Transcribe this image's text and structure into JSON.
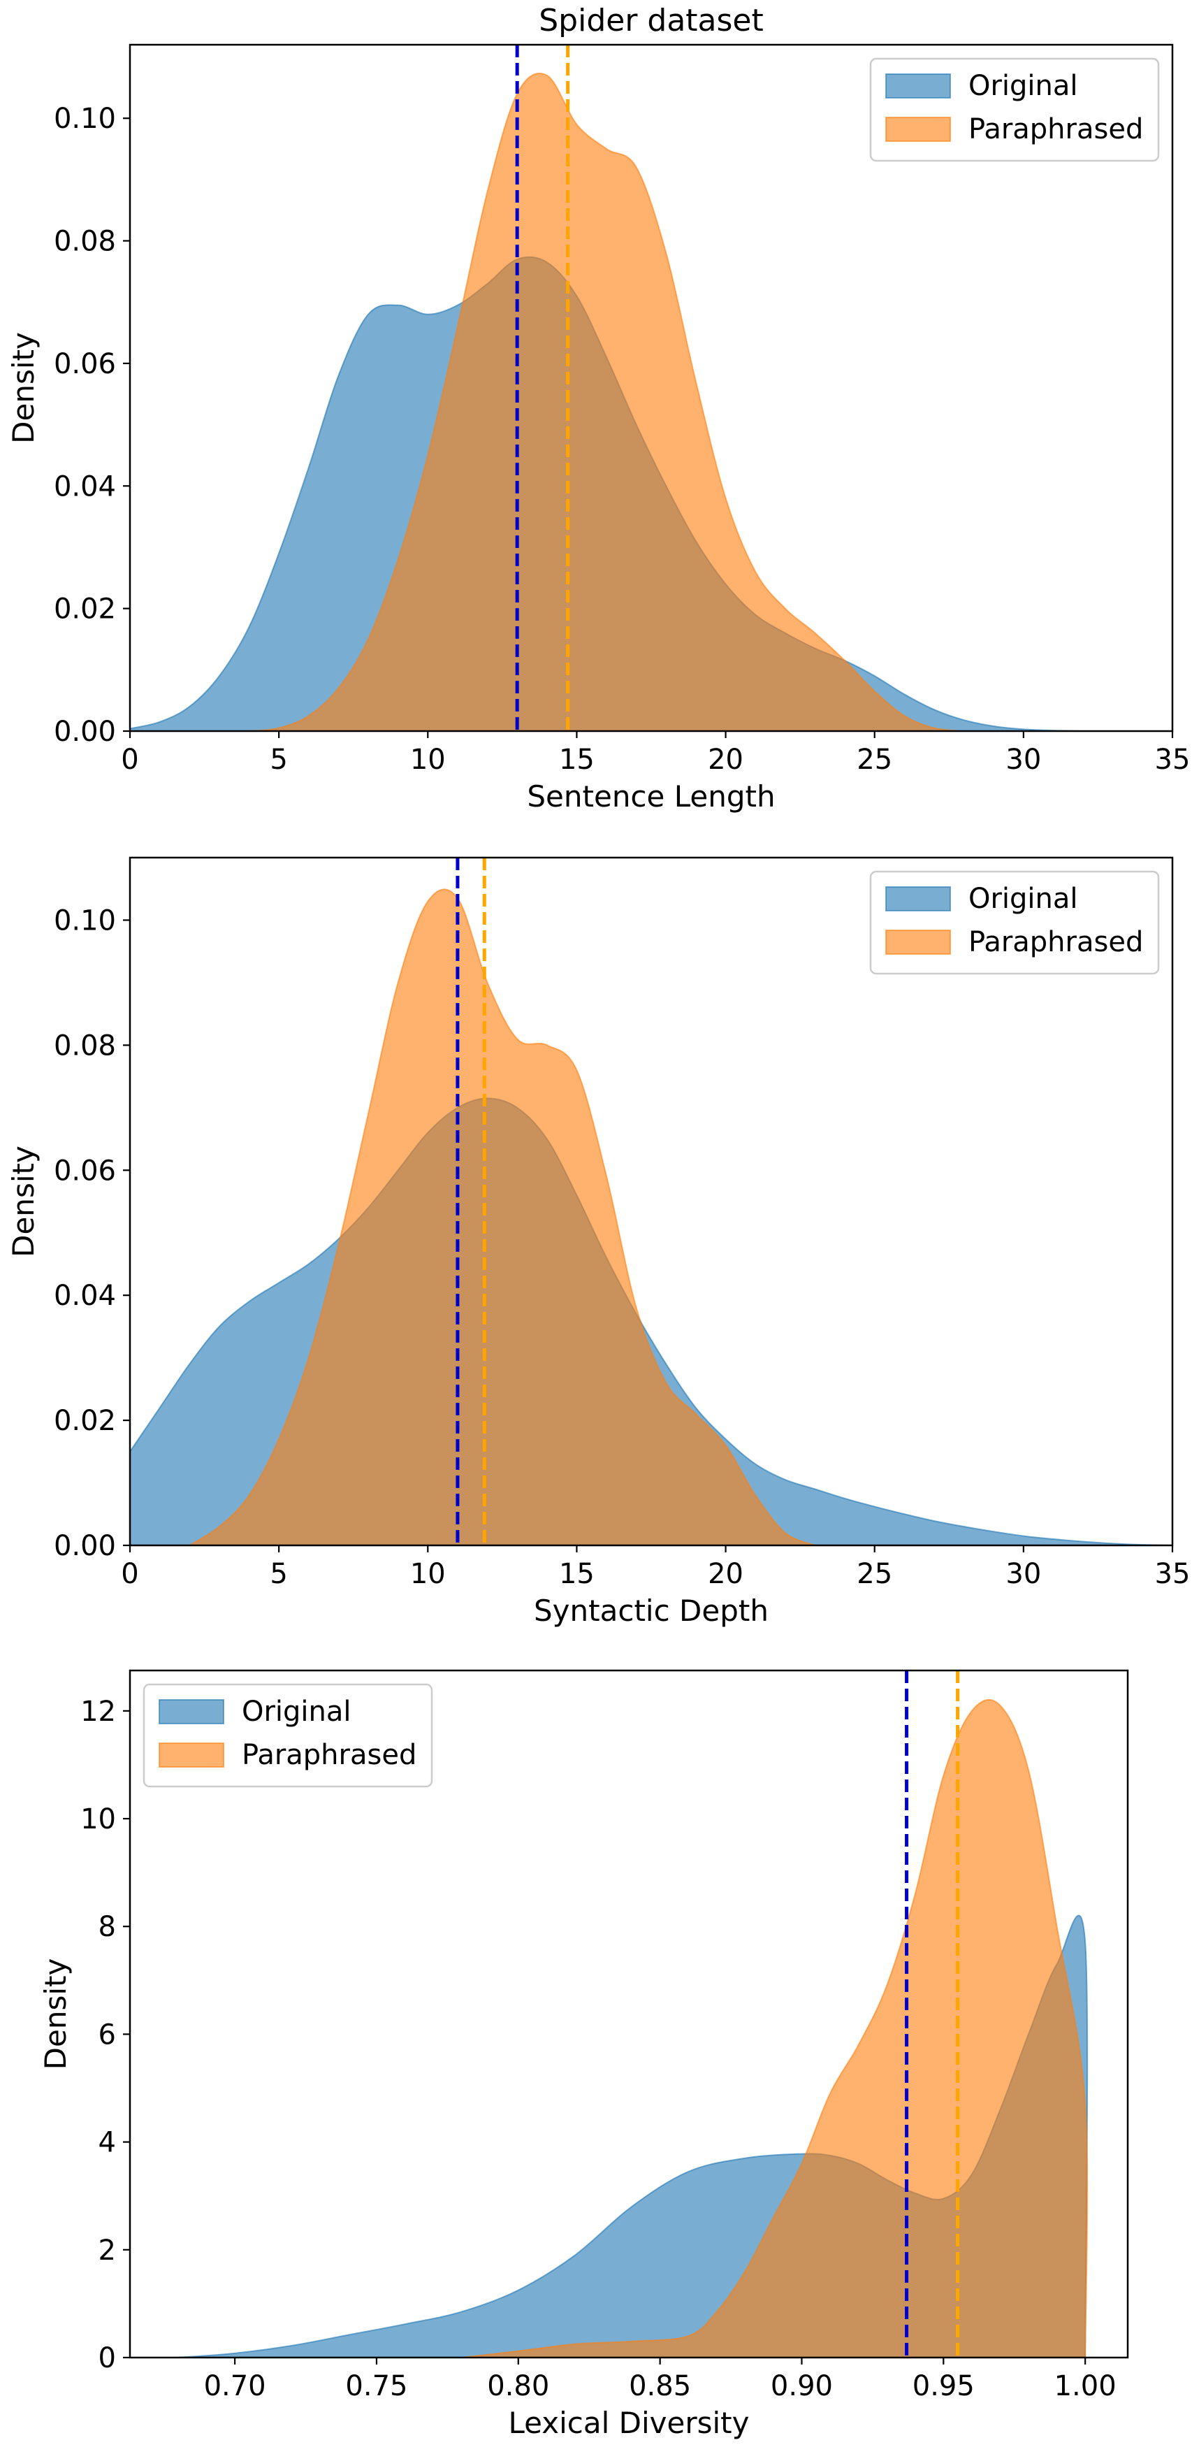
{
  "chart_data": [
    {
      "type": "area",
      "title": "Spider dataset",
      "xlabel": "Sentence Length",
      "ylabel": "Density",
      "xlim": [
        0,
        35
      ],
      "ylim": [
        0,
        0.112
      ],
      "xticks": [
        0,
        5,
        10,
        15,
        20,
        25,
        30,
        35
      ],
      "xtick_labels": [
        "0",
        "5",
        "10",
        "15",
        "20",
        "25",
        "30",
        "35"
      ],
      "yticks": [
        0,
        0.02,
        0.04,
        0.06,
        0.08,
        0.1
      ],
      "ytick_labels": [
        "0.00",
        "0.02",
        "0.04",
        "0.06",
        "0.08",
        "0.10"
      ],
      "legend_position": "upper right",
      "legend": [
        "Original",
        "Paraphrased"
      ],
      "series": [
        {
          "name": "Original",
          "color": "#1f77b4",
          "mean_line": 13.0,
          "mean_color": "#0000cd",
          "x": [
            0,
            1,
            2,
            3,
            4,
            5,
            6,
            7,
            8,
            9,
            10,
            11,
            12,
            13,
            14,
            15,
            16,
            17,
            18,
            19,
            20,
            21,
            22,
            23,
            24,
            25,
            26,
            27,
            28,
            29,
            30,
            31,
            32
          ],
          "y": [
            0.0004,
            0.0015,
            0.004,
            0.009,
            0.017,
            0.029,
            0.043,
            0.058,
            0.068,
            0.0695,
            0.068,
            0.0695,
            0.073,
            0.077,
            0.0765,
            0.071,
            0.061,
            0.05,
            0.04,
            0.031,
            0.024,
            0.019,
            0.016,
            0.0135,
            0.0115,
            0.009,
            0.006,
            0.0035,
            0.0018,
            0.0008,
            0.0003,
            0.0001,
            0.0
          ]
        },
        {
          "name": "Paraphrased",
          "color": "#ff7f0e",
          "mean_line": 14.7,
          "mean_color": "#ffa500",
          "x": [
            4,
            5,
            6,
            7,
            8,
            9,
            10,
            11,
            12,
            13,
            14,
            15,
            16,
            17,
            18,
            19,
            20,
            21,
            22,
            23,
            24,
            25,
            26,
            27,
            28
          ],
          "y": [
            0.0,
            0.0005,
            0.0025,
            0.007,
            0.015,
            0.028,
            0.045,
            0.066,
            0.088,
            0.104,
            0.107,
            0.099,
            0.095,
            0.092,
            0.078,
            0.057,
            0.038,
            0.026,
            0.02,
            0.016,
            0.0115,
            0.0065,
            0.0025,
            0.0005,
            0.0
          ]
        }
      ]
    },
    {
      "type": "area",
      "title": "",
      "xlabel": "Syntactic Depth",
      "ylabel": "Density",
      "xlim": [
        0,
        35
      ],
      "ylim": [
        0,
        0.11
      ],
      "xticks": [
        0,
        5,
        10,
        15,
        20,
        25,
        30,
        35
      ],
      "xtick_labels": [
        "0",
        "5",
        "10",
        "15",
        "20",
        "25",
        "30",
        "35"
      ],
      "yticks": [
        0,
        0.02,
        0.04,
        0.06,
        0.08,
        0.1
      ],
      "ytick_labels": [
        "0.00",
        "0.02",
        "0.04",
        "0.06",
        "0.08",
        "0.10"
      ],
      "legend_position": "upper right",
      "legend": [
        "Original",
        "Paraphrased"
      ],
      "series": [
        {
          "name": "Original",
          "color": "#1f77b4",
          "mean_line": 11.0,
          "mean_color": "#0000cd",
          "x": [
            0,
            1,
            2,
            3,
            4,
            5,
            6,
            7,
            8,
            9,
            10,
            11,
            12,
            13,
            14,
            15,
            16,
            17,
            18,
            19,
            20,
            21,
            22,
            23,
            24,
            25,
            26,
            27,
            28,
            29,
            30,
            31,
            32,
            33,
            34,
            35
          ],
          "y": [
            0.015,
            0.022,
            0.029,
            0.035,
            0.039,
            0.042,
            0.045,
            0.049,
            0.054,
            0.06,
            0.066,
            0.07,
            0.0715,
            0.07,
            0.065,
            0.056,
            0.046,
            0.037,
            0.029,
            0.022,
            0.017,
            0.013,
            0.0105,
            0.009,
            0.0075,
            0.0062,
            0.005,
            0.0039,
            0.003,
            0.0022,
            0.0015,
            0.001,
            0.0006,
            0.0003,
            0.0001,
            0.0
          ]
        },
        {
          "name": "Paraphrased",
          "color": "#ff7f0e",
          "mean_line": 11.9,
          "mean_color": "#ffa500",
          "x": [
            2,
            3,
            4,
            5,
            6,
            7,
            8,
            9,
            10,
            11,
            12,
            13,
            14,
            15,
            16,
            17,
            18,
            19,
            20,
            21,
            22,
            23
          ],
          "y": [
            0.0,
            0.003,
            0.008,
            0.017,
            0.03,
            0.048,
            0.069,
            0.09,
            0.103,
            0.1035,
            0.09,
            0.081,
            0.08,
            0.076,
            0.059,
            0.038,
            0.026,
            0.021,
            0.016,
            0.008,
            0.002,
            0.0
          ]
        }
      ]
    },
    {
      "type": "area",
      "title": "",
      "xlabel": "Lexical Diversity",
      "ylabel": "Density",
      "xlim": [
        0.663,
        1.015
      ],
      "ylim": [
        0,
        12.75
      ],
      "xticks": [
        0.7,
        0.75,
        0.8,
        0.85,
        0.9,
        0.95,
        1.0
      ],
      "xtick_labels": [
        "0.70",
        "0.75",
        "0.80",
        "0.85",
        "0.90",
        "0.95",
        "1.00"
      ],
      "yticks": [
        0,
        2,
        4,
        6,
        8,
        10,
        12
      ],
      "ytick_labels": [
        "0",
        "2",
        "4",
        "6",
        "8",
        "10",
        "12"
      ],
      "legend_position": "upper left",
      "legend": [
        "Original",
        "Paraphrased"
      ],
      "series": [
        {
          "name": "Original",
          "color": "#1f77b4",
          "mean_line": 0.937,
          "mean_color": "#0000cd",
          "x": [
            0.68,
            0.7,
            0.72,
            0.74,
            0.76,
            0.78,
            0.8,
            0.82,
            0.84,
            0.86,
            0.88,
            0.9,
            0.91,
            0.92,
            0.93,
            0.94,
            0.95,
            0.96,
            0.97,
            0.98,
            0.99,
            1.0,
            1.0
          ],
          "y": [
            0.0,
            0.08,
            0.22,
            0.42,
            0.62,
            0.85,
            1.25,
            1.9,
            2.8,
            3.45,
            3.7,
            3.78,
            3.75,
            3.6,
            3.3,
            3.05,
            2.95,
            3.4,
            4.6,
            6.0,
            7.3,
            7.7,
            0.0
          ]
        },
        {
          "name": "Paraphrased",
          "color": "#ff7f0e",
          "mean_line": 0.955,
          "mean_color": "#ffa500",
          "x": [
            0.78,
            0.8,
            0.82,
            0.84,
            0.86,
            0.87,
            0.88,
            0.89,
            0.9,
            0.91,
            0.92,
            0.93,
            0.94,
            0.95,
            0.96,
            0.97,
            0.98,
            0.99,
            1.0,
            1.0
          ],
          "y": [
            0.0,
            0.12,
            0.25,
            0.3,
            0.4,
            0.85,
            1.6,
            2.6,
            3.6,
            4.9,
            5.8,
            6.9,
            8.6,
            10.8,
            12.0,
            12.1,
            10.9,
            8.0,
            4.7,
            0.0
          ]
        }
      ]
    }
  ]
}
